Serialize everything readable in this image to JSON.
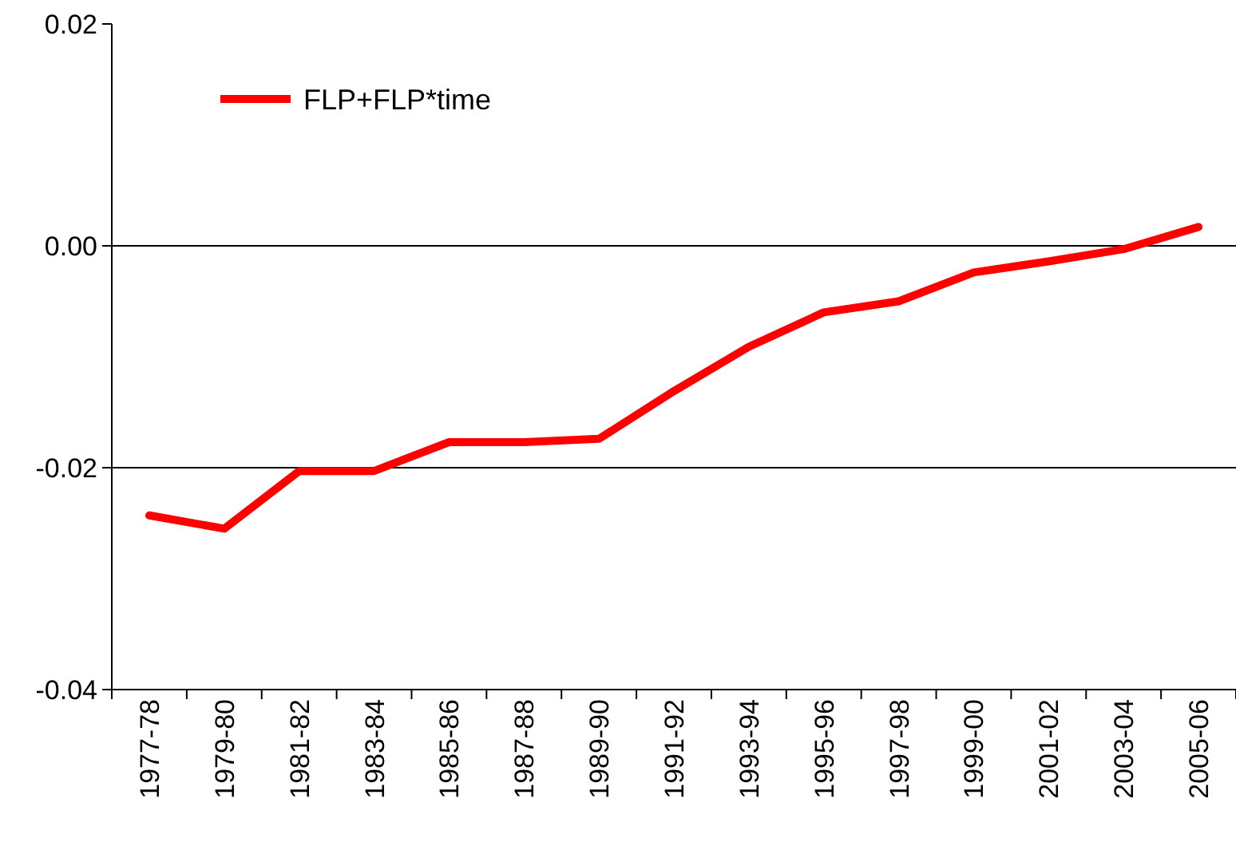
{
  "chart_data": {
    "type": "line",
    "categories": [
      "1977-78",
      "1979-80",
      "1981-82",
      "1983-84",
      "1985-86",
      "1987-88",
      "1989-90",
      "1991-92",
      "1993-94",
      "1995-96",
      "1997-98",
      "1999-00",
      "2001-02",
      "2003-04",
      "2005-06"
    ],
    "series": [
      {
        "name": "FLP+FLP*time",
        "color": "#ff0000",
        "values": [
          -0.0243,
          -0.0255,
          -0.0203,
          -0.0203,
          -0.0177,
          -0.0177,
          -0.0174,
          -0.0131,
          -0.0091,
          -0.006,
          -0.005,
          -0.0024,
          -0.0014,
          -0.0003,
          0.0017
        ]
      }
    ],
    "ylim": [
      -0.04,
      0.02
    ],
    "yticks": [
      {
        "value": -0.04,
        "label": "-0.04"
      },
      {
        "value": -0.02,
        "label": "-0.02"
      },
      {
        "value": 0,
        "label": "0.00"
      },
      {
        "value": 0.02,
        "label": "0.02"
      }
    ],
    "grid": "y",
    "legend": "top left",
    "marker": "none",
    "line_style": "solid"
  }
}
